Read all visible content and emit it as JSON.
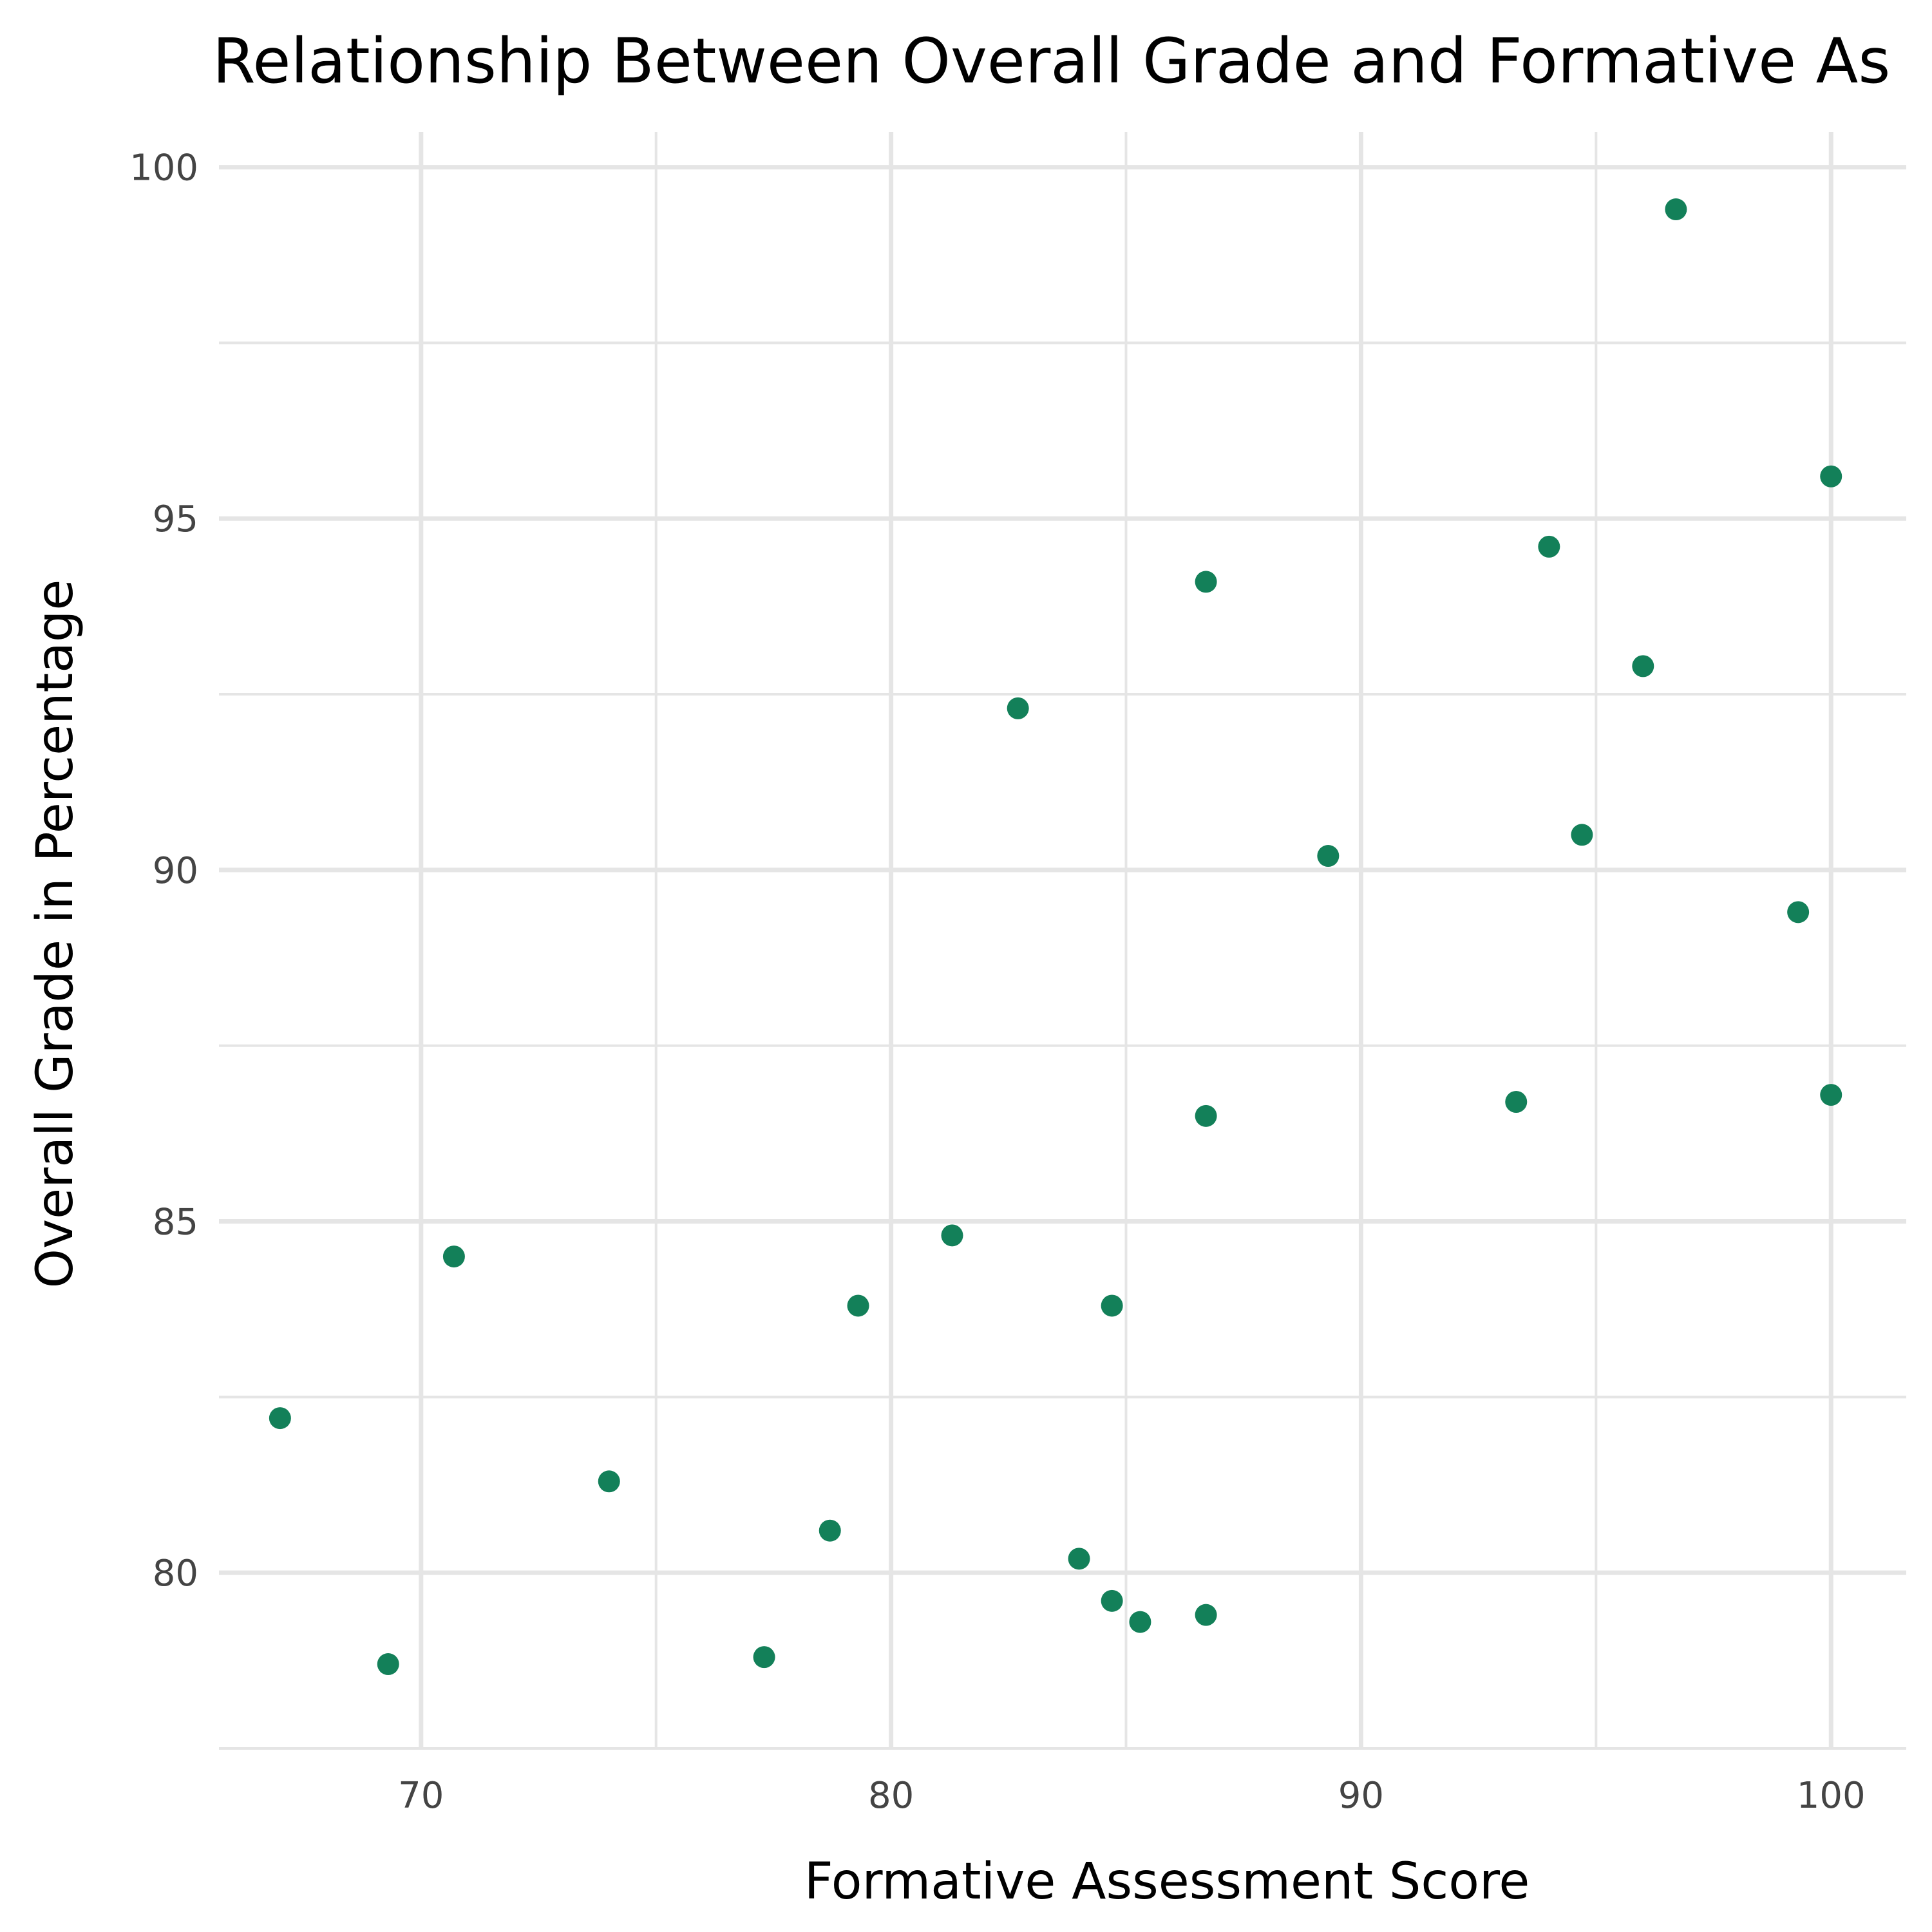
{
  "chart_data": {
    "type": "scatter",
    "title": "Relationship Between Overall Grade and Formative As",
    "xlabel": "Formative Assessment Score",
    "ylabel": "Overall Grade in Percentage",
    "xlim": [
      65.7,
      101.6
    ],
    "ylim": [
      77.5,
      100.5
    ],
    "xticks": [
      "70",
      "80",
      "90",
      "100"
    ],
    "yticks": [
      "80",
      "85",
      "90",
      "95",
      "100"
    ],
    "grid": true,
    "point_color": "#138059",
    "points": [
      {
        "x": 67.0,
        "y": 82.2
      },
      {
        "x": 69.3,
        "y": 78.7
      },
      {
        "x": 70.7,
        "y": 84.5
      },
      {
        "x": 74.0,
        "y": 81.3
      },
      {
        "x": 77.3,
        "y": 78.8
      },
      {
        "x": 78.7,
        "y": 80.6
      },
      {
        "x": 79.3,
        "y": 83.8
      },
      {
        "x": 81.3,
        "y": 84.8
      },
      {
        "x": 82.7,
        "y": 92.3
      },
      {
        "x": 84.0,
        "y": 80.2
      },
      {
        "x": 84.7,
        "y": 83.8
      },
      {
        "x": 84.7,
        "y": 79.6
      },
      {
        "x": 85.3,
        "y": 79.3
      },
      {
        "x": 86.7,
        "y": 79.4
      },
      {
        "x": 86.7,
        "y": 86.5
      },
      {
        "x": 86.7,
        "y": 94.1
      },
      {
        "x": 89.3,
        "y": 90.2
      },
      {
        "x": 93.3,
        "y": 86.7
      },
      {
        "x": 94.0,
        "y": 94.6
      },
      {
        "x": 94.7,
        "y": 90.5
      },
      {
        "x": 96.0,
        "y": 92.9
      },
      {
        "x": 96.7,
        "y": 99.4
      },
      {
        "x": 99.3,
        "y": 89.4
      },
      {
        "x": 100.0,
        "y": 95.6
      },
      {
        "x": 100.0,
        "y": 86.8
      }
    ]
  }
}
